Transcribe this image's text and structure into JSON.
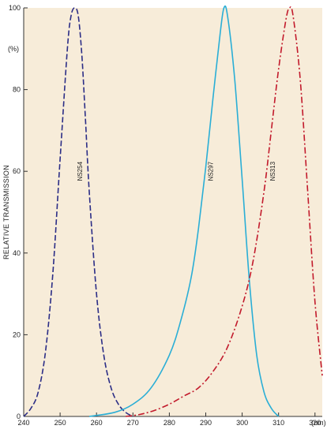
{
  "chart_data": {
    "type": "line",
    "ylabel": "RELATIVE TRANSMISSION",
    "y_unit_label": "(%)",
    "x_unit_label": "(nm)",
    "xlim": [
      240,
      322
    ],
    "ylim": [
      0,
      100
    ],
    "x_ticks": [
      {
        "value": 240,
        "label": "240"
      },
      {
        "value": 250,
        "label": "250"
      },
      {
        "value": 260,
        "label": "260"
      },
      {
        "value": 270,
        "label": "270"
      },
      {
        "value": 280,
        "label": "280"
      },
      {
        "value": 290,
        "label": "290"
      },
      {
        "value": 300,
        "label": "300"
      },
      {
        "value": 310,
        "label": "310"
      },
      {
        "value": 320,
        "label": "320"
      }
    ],
    "y_ticks": [
      {
        "value": 0,
        "label": "0"
      },
      {
        "value": 20,
        "label": "20"
      },
      {
        "value": 40,
        "label": "40"
      },
      {
        "value": 60,
        "label": "60"
      },
      {
        "value": 80,
        "label": "80"
      },
      {
        "value": 100,
        "label": "100"
      }
    ],
    "grid": false,
    "background": "#f7ecd9",
    "series": [
      {
        "name": "NS254",
        "color": "#2b2d86",
        "dash": "dashed",
        "label_at": [
          256,
          60
        ],
        "x": [
          240,
          242,
          244,
          246,
          248,
          250,
          252,
          253,
          254,
          255,
          256,
          257,
          258,
          260,
          262,
          264,
          266,
          268,
          270
        ],
        "y": [
          0,
          2,
          6,
          16,
          35,
          63,
          90,
          98,
          100,
          98,
          88,
          72,
          55,
          30,
          15,
          7,
          3,
          1,
          0
        ]
      },
      {
        "name": "NS297",
        "color": "#2aaed6",
        "dash": "solid",
        "label_at": [
          292,
          60
        ],
        "x": [
          258,
          265,
          270,
          275,
          280,
          283,
          286,
          288,
          290,
          292,
          294,
          295,
          296,
          298,
          300,
          302,
          304,
          306,
          308,
          310
        ],
        "y": [
          0,
          1,
          3,
          7,
          15,
          23,
          34,
          46,
          61,
          78,
          94,
          100,
          98,
          82,
          58,
          33,
          15,
          6,
          2,
          0
        ]
      },
      {
        "name": "NS313",
        "color": "#c21a2c",
        "dash": "dashdot",
        "label_at": [
          309,
          60
        ],
        "x": [
          268,
          272,
          276,
          280,
          284,
          288,
          292,
          296,
          300,
          303,
          306,
          308,
          310,
          312,
          313,
          314,
          316,
          318,
          320,
          322
        ],
        "y": [
          0,
          0.5,
          1.5,
          3,
          5,
          7,
          11,
          17,
          27,
          38,
          55,
          70,
          85,
          97,
          100,
          98,
          82,
          55,
          28,
          10
        ]
      }
    ]
  }
}
